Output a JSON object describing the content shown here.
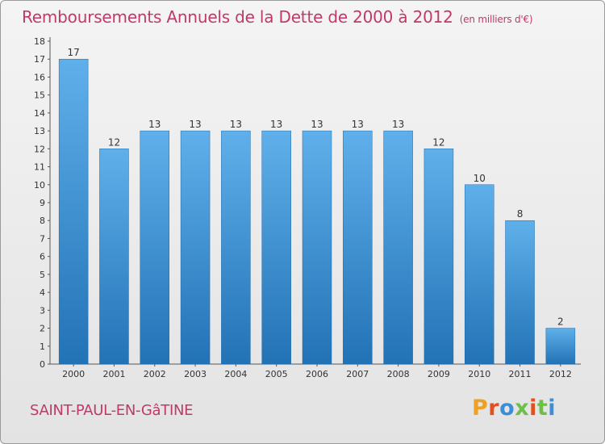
{
  "header": {
    "title": "Remboursements Annuels de la Dette de 2000 à 2012",
    "subtitle": "(en milliers d'€)"
  },
  "footer": {
    "commune": "SAINT-PAUL-EN-GâTINE",
    "logo_text": "Proxiti"
  },
  "colors": {
    "title": "#c0396a",
    "bar_top": "#5fb0ea",
    "bar_bottom": "#2272b6",
    "logo_letters": [
      "#f0a020",
      "#e05020",
      "#3a8fd8",
      "#6cc04a",
      "#e05020",
      "#6cc04a",
      "#3a8fd8"
    ]
  },
  "chart_data": {
    "type": "bar",
    "title": "Remboursements Annuels de la Dette de 2000 à 2012",
    "subtitle": "(en milliers d'€)",
    "xlabel": "",
    "ylabel": "",
    "categories": [
      "2000",
      "2001",
      "2002",
      "2003",
      "2004",
      "2005",
      "2006",
      "2007",
      "2008",
      "2009",
      "2010",
      "2011",
      "2012"
    ],
    "values": [
      17,
      12,
      13,
      13,
      13,
      13,
      13,
      13,
      13,
      12,
      10,
      8,
      2
    ],
    "data_labels": [
      "17",
      "12",
      "13",
      "13",
      "13",
      "13",
      "13",
      "13",
      "13",
      "12",
      "10",
      "8",
      "2"
    ],
    "y_ticks": [
      "0",
      "1",
      "2",
      "3",
      "4",
      "5",
      "6",
      "7",
      "8",
      "9",
      "10",
      "11",
      "12",
      "13",
      "14",
      "15",
      "16",
      "17",
      "18"
    ],
    "ylim": [
      0,
      18
    ],
    "grid": false,
    "legend": "none"
  }
}
